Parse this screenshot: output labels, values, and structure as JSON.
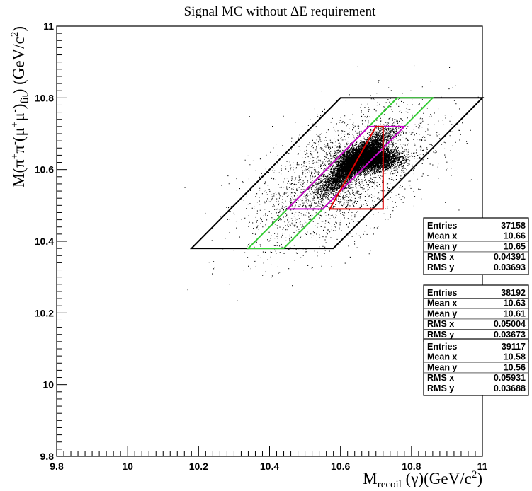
{
  "chart_data": {
    "type": "scatter",
    "title": "Signal MC without ΔE requirement",
    "xlabel": {
      "main": "M",
      "sub": "recoil",
      "rest": " (γ)(GeV/c",
      "sup": "2",
      "end": ")"
    },
    "ylabel": {
      "p1": "M(π",
      "s1": "+",
      "p2": "π",
      "s2": "-",
      "p3": "(μ",
      "s3": "+",
      "p4": "μ",
      "s4": "-",
      "p5": ")",
      "sub": "fit",
      "p6": ") (GeV/c",
      "s6": "2",
      "p7": ")"
    },
    "xlim": [
      9.8,
      11.0
    ],
    "ylim": [
      9.8,
      11.0
    ],
    "xticks": [
      "9.8",
      "10",
      "10.2",
      "10.4",
      "10.6",
      "10.8",
      "11"
    ],
    "yticks": [
      "9.8",
      "10",
      "10.2",
      "10.4",
      "10.6",
      "10.8",
      "11"
    ],
    "grid": false,
    "point_color": "#000000",
    "distribution": {
      "core_center": [
        10.64,
        10.62
      ],
      "core_spread": [
        0.045,
        0.04
      ],
      "band_center": [
        10.68,
        10.63
      ],
      "band_spread": [
        0.04,
        0.015
      ]
    },
    "selection_regions": [
      {
        "name": "black",
        "color": "#000000",
        "points": [
          [
            10.18,
            10.38
          ],
          [
            10.6,
            10.8
          ],
          [
            11.0,
            10.8
          ],
          [
            10.58,
            10.38
          ]
        ]
      },
      {
        "name": "green",
        "color": "#33cc33",
        "points": [
          [
            10.34,
            10.38
          ],
          [
            10.76,
            10.8
          ],
          [
            10.86,
            10.8
          ],
          [
            10.44,
            10.38
          ]
        ]
      },
      {
        "name": "magenta",
        "color": "#cc00cc",
        "points": [
          [
            10.45,
            10.49
          ],
          [
            10.68,
            10.72
          ],
          [
            10.78,
            10.72
          ],
          [
            10.55,
            10.49
          ]
        ]
      },
      {
        "name": "red",
        "color": "#dd0000",
        "points": [
          [
            10.57,
            10.49
          ],
          [
            10.72,
            10.49
          ],
          [
            10.72,
            10.72
          ],
          [
            10.7,
            10.72
          ]
        ]
      }
    ],
    "stats_boxes": [
      {
        "entries_label": "Entries",
        "entries": "37158",
        "meanx_label": "Mean x",
        "meanx": "10.66",
        "meany_label": "Mean y",
        "meany": "10.65",
        "rmsx_label": "RMS x",
        "rmsx": "0.04391",
        "rmsy_label": "RMS y",
        "rmsy": "0.03693"
      },
      {
        "entries_label": "Entries",
        "entries": "38192",
        "meanx_label": "Mean x",
        "meanx": "10.63",
        "meany_label": "Mean y",
        "meany": "10.61",
        "rmsx_label": "RMS x",
        "rmsx": "0.05004",
        "rmsy_label": "RMS y",
        "rmsy": "0.03673"
      },
      {
        "entries_label": "Entries",
        "entries": "39117",
        "meanx_label": "Mean x",
        "meanx": "10.58",
        "meany_label": "Mean y",
        "meany": "10.56",
        "rmsx_label": "RMS x",
        "rmsx": "0.05931",
        "rmsy_label": "RMS y",
        "rmsy": "0.03688"
      }
    ]
  }
}
